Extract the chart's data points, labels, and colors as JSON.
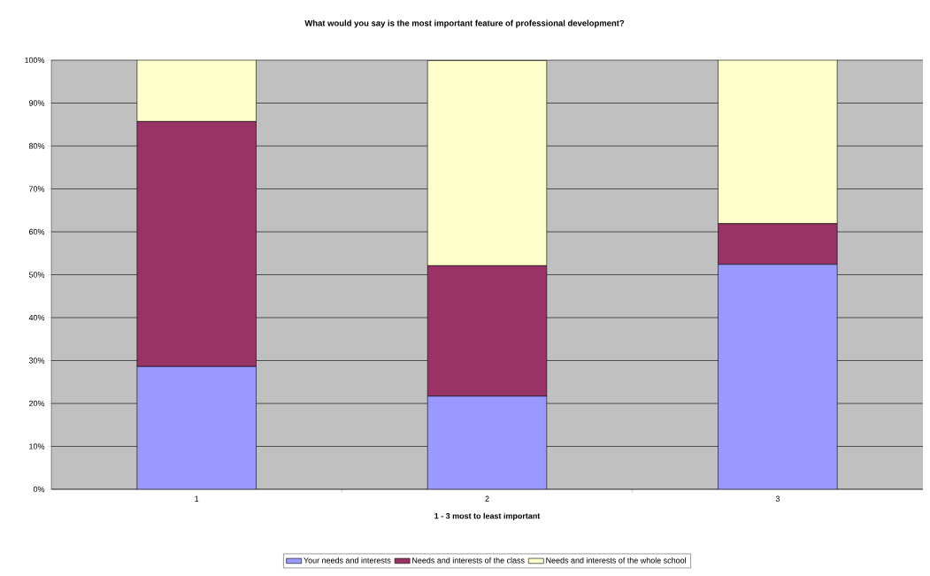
{
  "chart_data": {
    "type": "bar",
    "stacked": true,
    "title": "What would you say is the most important feature of professional development?",
    "xlabel": "1 - 3 most to least important",
    "categories": [
      "1",
      "2",
      "3"
    ],
    "series": [
      {
        "name": "Your needs and interests",
        "color": "#9999ff",
        "values": [
          28.6,
          21.7,
          52.4
        ]
      },
      {
        "name": "Needs and interests of the class",
        "color": "#993366",
        "values": [
          57.1,
          30.4,
          9.5
        ]
      },
      {
        "name": "Needs and interests of the whole school",
        "color": "#ffffcc",
        "values": [
          14.3,
          47.8,
          38.1
        ]
      }
    ],
    "ylim": [
      0,
      100
    ],
    "yticks": [
      {
        "value": 0,
        "label": "0%"
      },
      {
        "value": 10,
        "label": "10%"
      },
      {
        "value": 20,
        "label": "20%"
      },
      {
        "value": 30,
        "label": "30%"
      },
      {
        "value": 40,
        "label": "40%"
      },
      {
        "value": 50,
        "label": "50%"
      },
      {
        "value": 60,
        "label": "60%"
      },
      {
        "value": 70,
        "label": "70%"
      },
      {
        "value": 80,
        "label": "80%"
      },
      {
        "value": 90,
        "label": "90%"
      },
      {
        "value": 100,
        "label": "100%"
      }
    ],
    "grid": "y",
    "legend": "bottom"
  }
}
